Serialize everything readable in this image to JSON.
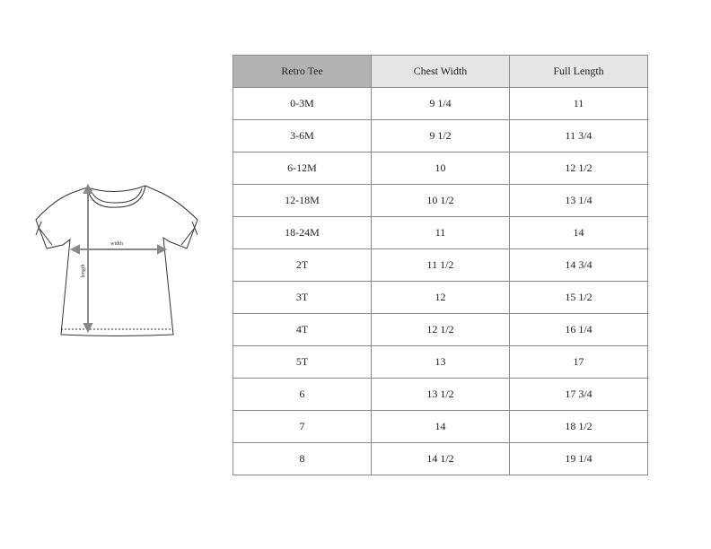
{
  "diagram": {
    "width_label": "width",
    "length_label": "length"
  },
  "table": {
    "headers": [
      "Retro Tee",
      "Chest Width",
      "Full Length"
    ],
    "rows": [
      [
        "0-3M",
        "9 1/4",
        "11"
      ],
      [
        "3-6M",
        "9 1/2",
        "11 3/4"
      ],
      [
        "6-12M",
        "10",
        "12 1/2"
      ],
      [
        "12-18M",
        "10 1/2",
        "13 1/4"
      ],
      [
        "18-24M",
        "11",
        "14"
      ],
      [
        "2T",
        "11 1/2",
        "14 3/4"
      ],
      [
        "3T",
        "12",
        "15 1/2"
      ],
      [
        "4T",
        "12 1/2",
        "16 1/4"
      ],
      [
        "5T",
        "13",
        "17"
      ],
      [
        "6",
        "13 1/2",
        "17 3/4"
      ],
      [
        "7",
        "14",
        "18 1/2"
      ],
      [
        "8",
        "14 1/2",
        "19 1/4"
      ]
    ],
    "colors": {
      "first_header": "#b3b3b3",
      "header": "#e6e6e6",
      "border": "#8a8a8a"
    }
  }
}
